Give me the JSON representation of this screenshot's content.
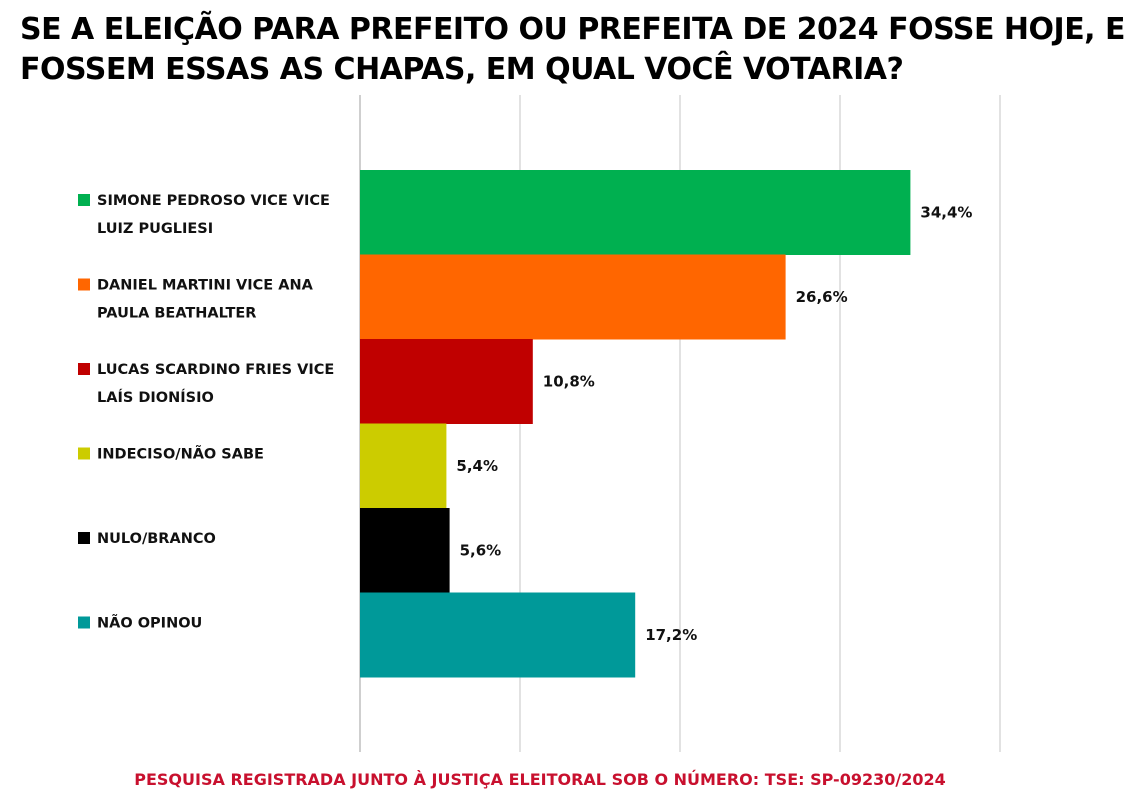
{
  "title_lines": [
    "SE A ELEIÇÃO PARA PREFEITO OU PREFEITA DE 2024 FOSSE HOJE, E",
    "FOSSEM ESSAS AS CHAPAS, EM QUAL VOCÊ VOTARIA?"
  ],
  "footer": "PESQUISA REGISTRADA JUNTO À JUSTIÇA ELEITORAL SOB O NÚMERO: TSE: SP-09230/2024",
  "chart_data": {
    "type": "bar",
    "orientation": "horizontal",
    "grid": true,
    "xlim": [
      0,
      40
    ],
    "categories": [
      [
        "SIMONE PEDROSO VICE VICE",
        "LUIZ PUGLIESI"
      ],
      [
        "DANIEL MARTINI VICE ANA",
        "PAULA BEATHALTER"
      ],
      [
        "LUCAS SCARDINO FRIES VICE",
        "LAÍS DIONÍSIO"
      ],
      [
        "INDECISO/NÃO SABE"
      ],
      [
        "NULO/BRANCO"
      ],
      [
        "NÃO OPINOU"
      ]
    ],
    "values": [
      34.4,
      26.6,
      10.8,
      5.4,
      5.6,
      17.2
    ],
    "value_labels": [
      "34,4%",
      "26,6%",
      "10,8%",
      "5,4%",
      "5,6%",
      "17,2%"
    ],
    "colors": [
      "#00b050",
      "#ff6600",
      "#c00000",
      "#cccc00",
      "#000000",
      "#009999"
    ]
  }
}
